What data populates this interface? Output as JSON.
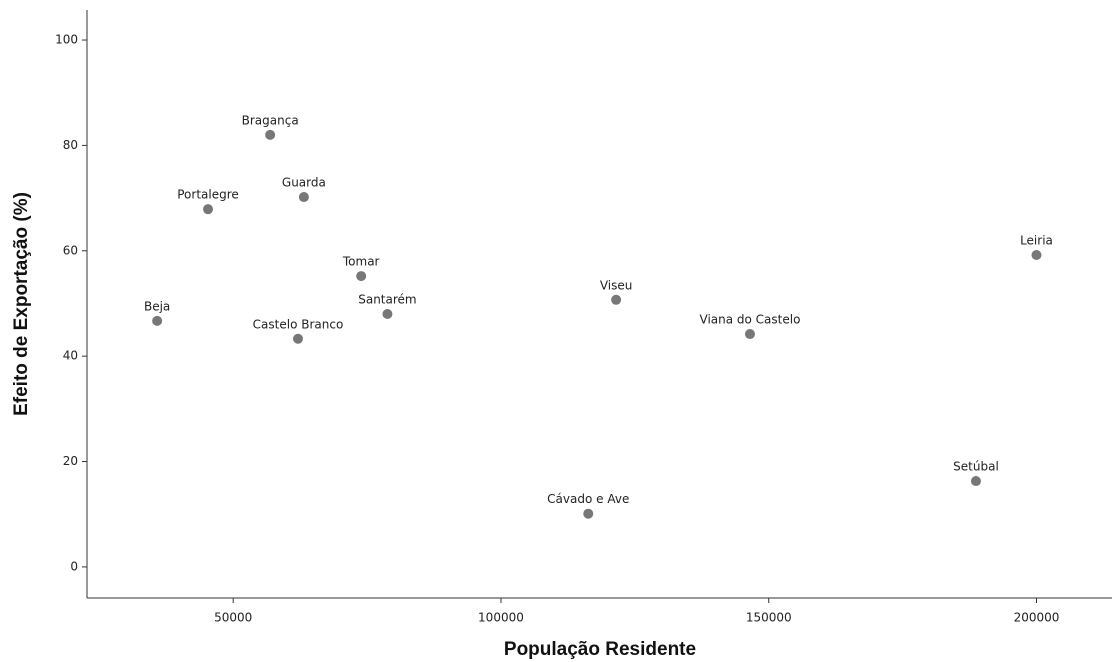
{
  "chart_data": {
    "type": "scatter",
    "x_label": "População Residente",
    "y_label": "Efeito de Exportação (%)",
    "point_labels": [
      "Beja",
      "Portalegre",
      "Bragança",
      "Guarda",
      "Castelo Branco",
      "Tomar",
      "Santarém",
      "Viseu",
      "Cávado e Ave",
      "Viana do Castelo",
      "Setúbal",
      "Leiria"
    ],
    "x": [
      35800,
      45300,
      56900,
      63200,
      62100,
      73900,
      78800,
      121500,
      116300,
      146500,
      188700,
      200000
    ],
    "values": [
      46.7,
      67.9,
      82.0,
      70.2,
      43.3,
      55.2,
      48.0,
      50.7,
      10.1,
      44.2,
      16.3,
      59.2
    ],
    "color": "#777777",
    "xlim": [
      22700,
      214100
    ],
    "xticks": [
      50000,
      100000,
      150000,
      200000
    ],
    "ylim": [
      -5.9,
      105.7
    ],
    "yticks": [
      0,
      20,
      40,
      60,
      80,
      100
    ],
    "grid": false
  }
}
